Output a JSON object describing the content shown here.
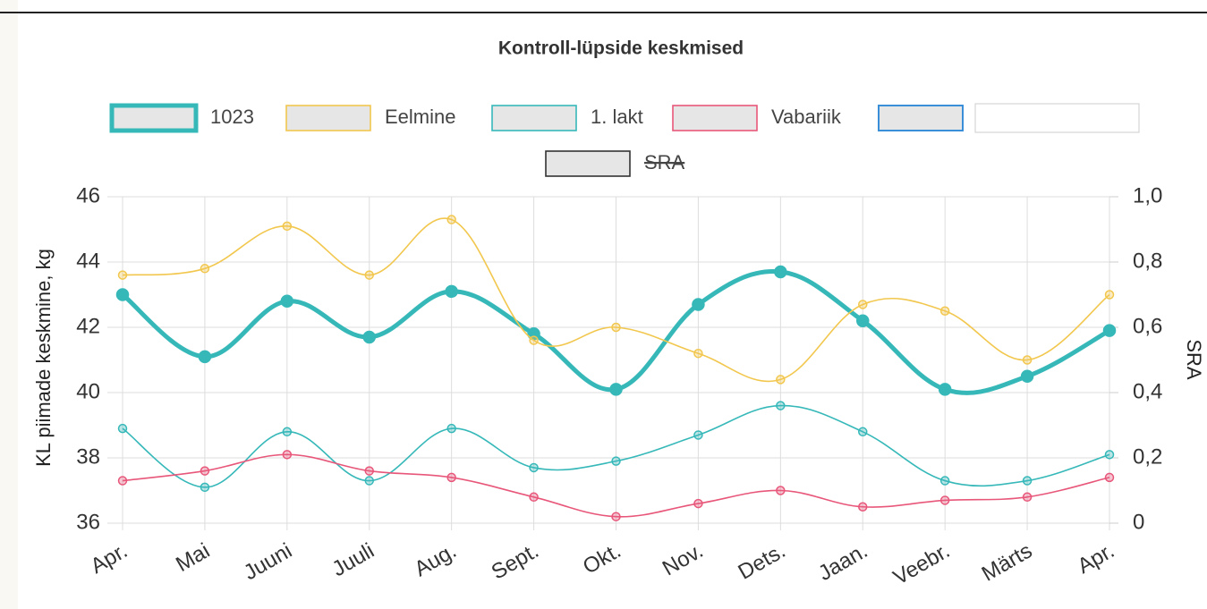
{
  "chart_data": {
    "type": "line",
    "title": "Kontroll-lüpside keskmised",
    "ylabel": "KL piimade keskmine, kg",
    "y2label": "SRA",
    "categories": [
      "Apr.",
      "Mai",
      "Juuni",
      "Juuli",
      "Aug.",
      "Sept.",
      "Okt.",
      "Nov.",
      "Dets.",
      "Jaan.",
      "Veebr.",
      "Märts",
      "Apr."
    ],
    "ylim": [
      36,
      46
    ],
    "yticks": [
      36,
      38,
      40,
      42,
      44,
      46
    ],
    "y2lim": [
      0,
      1
    ],
    "y2ticks": [
      0,
      {
        "value": 0.2,
        "label": "0,2"
      },
      {
        "value": 0.4,
        "label": "0,4"
      },
      {
        "value": 0.6,
        "label": "0,6"
      },
      {
        "value": 0.8,
        "label": "0,8"
      },
      {
        "value": 1,
        "label": "1,0"
      }
    ],
    "grid": true,
    "series": [
      {
        "name": "1023",
        "color": "#36b8b9",
        "values": [
          43.0,
          41.1,
          42.8,
          41.7,
          43.1,
          41.8,
          40.1,
          42.7,
          43.7,
          42.2,
          40.1,
          40.5,
          41.9
        ]
      },
      {
        "name": "Eelmine",
        "color": "#f2c74e",
        "values": [
          43.6,
          43.8,
          45.1,
          43.6,
          45.3,
          41.6,
          42.0,
          41.2,
          40.4,
          42.7,
          42.5,
          41.0,
          43.0
        ]
      },
      {
        "name": "1. lakt",
        "color": "#36b8b9",
        "values": [
          38.9,
          37.1,
          38.8,
          37.3,
          38.9,
          37.7,
          37.9,
          38.7,
          39.6,
          38.8,
          37.3,
          37.3,
          38.1
        ]
      },
      {
        "name": "Vabariik",
        "color": "#e8577a",
        "values": [
          37.3,
          37.6,
          38.1,
          37.6,
          37.4,
          36.8,
          36.2,
          36.6,
          37.0,
          36.5,
          36.7,
          36.8,
          37.4
        ]
      },
      {
        "name": "SRA",
        "color": "#333333",
        "axis": "y2",
        "hidden": true,
        "values": [
          null,
          null,
          null,
          null,
          null,
          null,
          null,
          null,
          null,
          null,
          null,
          null,
          null
        ]
      }
    ]
  }
}
